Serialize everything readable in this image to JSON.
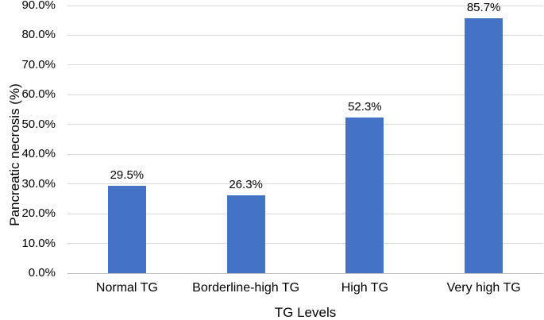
{
  "figure": {
    "background_color": "#ffffff",
    "text_color": "#000000"
  },
  "chart_data": {
    "type": "bar",
    "title": "",
    "categories": [
      "Normal TG",
      "Borderline-high TG",
      "High TG",
      "Very high TG"
    ],
    "values": [
      29.5,
      26.3,
      52.3,
      85.7
    ],
    "data_labels": [
      "29.5%",
      "26.3%",
      "52.3%",
      "85.7%"
    ],
    "xlabel": "TG Levels",
    "ylabel": "Pancreatic necrosis (%)",
    "ylim": [
      0,
      90
    ],
    "y_tick_step": 10,
    "y_ticks": [
      "0.0%",
      "10.0%",
      "20.0%",
      "30.0%",
      "40.0%",
      "50.0%",
      "60.0%",
      "70.0%",
      "80.0%",
      "90.0%"
    ],
    "grid": "horizontal",
    "legend_position": "none",
    "bar_color": "#4472C4",
    "gridline_color": "#D9D9D9",
    "axis_line_color": "#BFBFBF"
  }
}
